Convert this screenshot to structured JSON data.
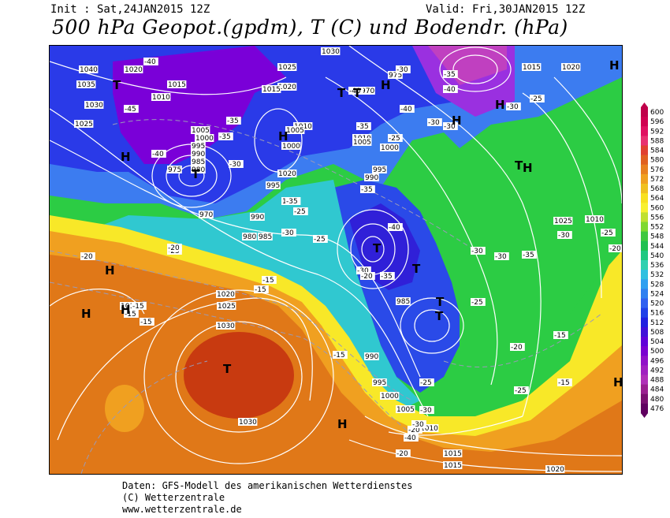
{
  "header": {
    "init": "Init : Sat,24JAN2015 12Z",
    "valid": "Valid: Fri,30JAN2015 12Z",
    "title": "500 hPa Geopot.(gpdm), T (C) und Bodendr. (hPa)"
  },
  "footer": {
    "line1": "Daten: GFS-Modell des amerikanischen Wetterdienstes",
    "line2": "(C) Wetterzentrale",
    "line3": "www.wetterzentrale.de"
  },
  "colors": {
    "purple": "#7a00d8",
    "violet": "#9a40e8",
    "blue": "#2a3ae8",
    "lightblue": "#4a8af0",
    "cyan": "#30c8e0",
    "teal": "#30d890",
    "green": "#20c840",
    "yellow": "#f8f020",
    "orange": "#f0a020",
    "darkorange": "#e07010",
    "red": "#c83010",
    "isobar": "#ffffff"
  },
  "scale": {
    "labels": [
      "600",
      "596",
      "592",
      "588",
      "584",
      "580",
      "576",
      "572",
      "568",
      "564",
      "560",
      "556",
      "552",
      "548",
      "544",
      "540",
      "536",
      "532",
      "528",
      "524",
      "520",
      "516",
      "512",
      "508",
      "504",
      "500",
      "496",
      "492",
      "488",
      "484",
      "480",
      "476"
    ],
    "colors": [
      "#c0004a",
      "#d00050",
      "#e01060",
      "#e83070",
      "#e04030",
      "#e06020",
      "#e88020",
      "#f0a020",
      "#f0c020",
      "#f8e020",
      "#f8f030",
      "#c0e030",
      "#80d830",
      "#40c840",
      "#20c050",
      "#20c880",
      "#30d0b0",
      "#30c0e0",
      "#30a0f0",
      "#3080f0",
      "#3060f0",
      "#2040e8",
      "#2020e0",
      "#4010d8",
      "#6000d8",
      "#7a00d0",
      "#9010c8",
      "#a020c0",
      "#b030b8",
      "#9a2090",
      "#7a1070",
      "#600060"
    ]
  },
  "map": {
    "pressure_labels": [
      "1040",
      "1035",
      "1030",
      "1025",
      "1020",
      "1015",
      "1010",
      "1005",
      "1000",
      "995",
      "990",
      "985",
      "980",
      "975",
      "970",
      "1030",
      "1025",
      "1020",
      "1015",
      "1010",
      "1005",
      "1000",
      "995",
      "990",
      "985",
      "980",
      "975",
      "970",
      "1030",
      "1020",
      "1015",
      "1030",
      "1025",
      "1020",
      "1015",
      "1010",
      "1005",
      "1000",
      "995",
      "990",
      "985",
      "990",
      "995",
      "1000",
      "1005",
      "1010",
      "1015",
      "1015",
      "1020",
      "1025",
      "1010",
      "1015",
      "1020"
    ],
    "temp_labels": [
      "-40",
      "-45",
      "-40",
      "-35",
      "-35",
      "-30",
      "-35",
      "-25",
      "-30",
      "-35",
      "-40",
      "-35",
      "-30",
      "-40",
      "-35",
      "-30",
      "-25",
      "-20",
      "-25",
      "-20",
      "-15",
      "-15",
      "-15",
      "-15",
      "-20",
      "-15",
      "-25",
      "-30",
      "-35",
      "-30",
      "-25",
      "-20",
      "-15",
      "-20",
      "-25",
      "-30",
      "-25",
      "-20",
      "-20",
      "-25",
      "-15",
      "-15",
      "-30",
      "-40",
      "-30",
      "-40",
      "-30",
      "-35",
      "-40",
      "-30",
      "-30",
      "-25"
    ],
    "markers": [
      "H",
      "H",
      "H",
      "H",
      "H",
      "T",
      "T",
      "T",
      "T",
      "T",
      "T",
      "T",
      "T",
      "H",
      "H",
      "H",
      "H",
      "H",
      "H",
      "H",
      "T",
      "T"
    ]
  }
}
